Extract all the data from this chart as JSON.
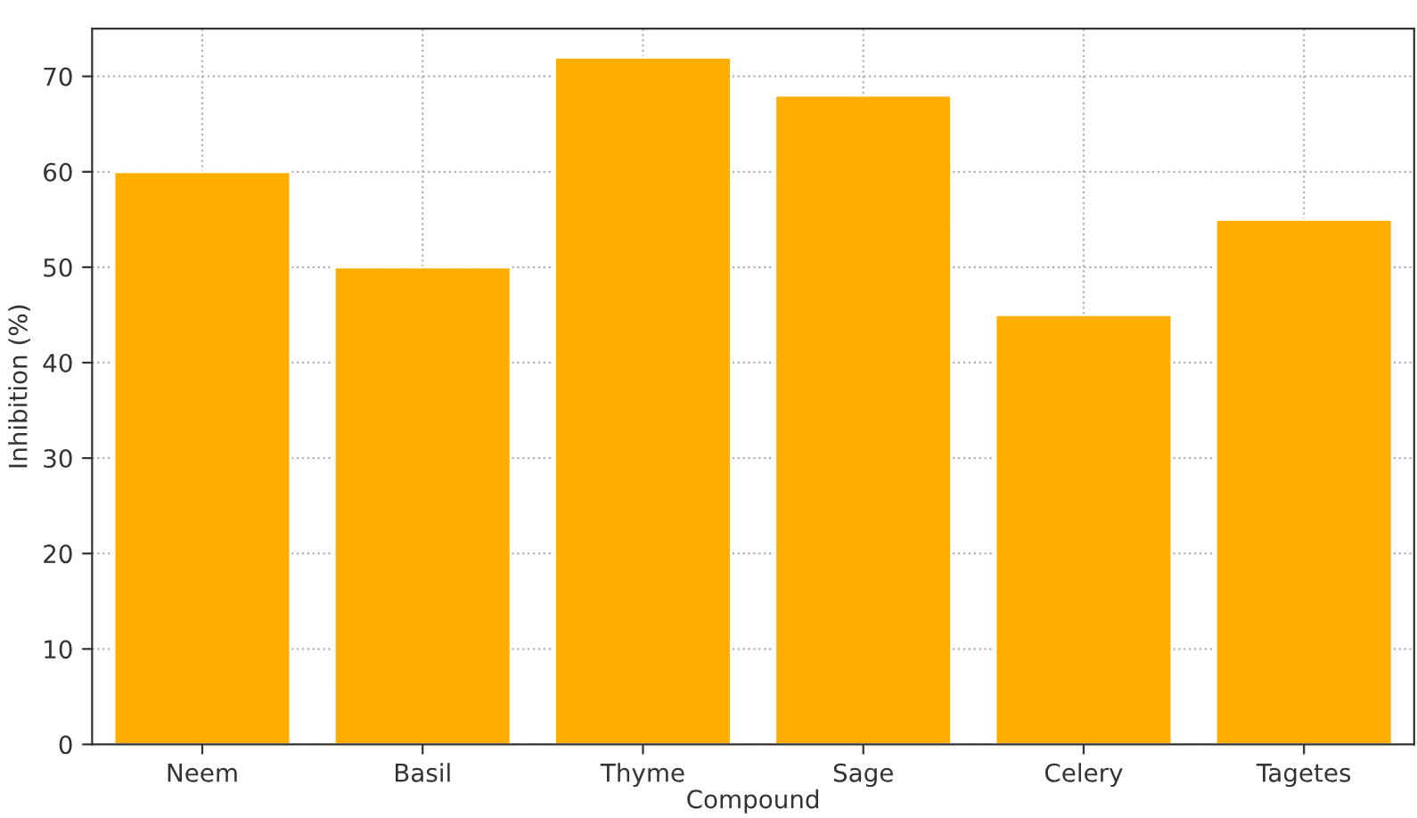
{
  "chart_data": {
    "type": "bar",
    "xlabel": "Compound",
    "ylabel": "Inhibition (%)",
    "categories": [
      "Neem",
      "Basil",
      "Thyme",
      "Sage",
      "Celery",
      "Tagetes"
    ],
    "values": [
      60,
      50,
      72,
      68,
      45,
      55
    ],
    "color": "#ffae00",
    "ylim": [
      0,
      75
    ],
    "yticks": [
      0,
      10,
      20,
      30,
      40,
      50,
      60,
      70
    ],
    "grid": true
  }
}
